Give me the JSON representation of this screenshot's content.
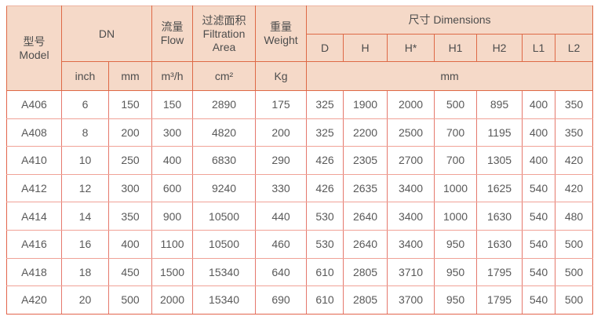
{
  "colors": {
    "header_bg": "#f5d9c8",
    "header_border": "#de6946",
    "outer_border": "#e2654c",
    "data_border_vertical": "#e5796d",
    "data_border_horizontal": "#f0a297",
    "header_text": "#4d4d4d",
    "data_text": "#595959",
    "page_bg": "#ffffff"
  },
  "table": {
    "header": {
      "model_zh": "型号",
      "model_en": "Model",
      "dn": "DN",
      "flow_zh": "流量",
      "flow_en": "Flow",
      "filtration_zh": "过滤面积",
      "filtration_en_1": "Filtration",
      "filtration_en_2": "Area",
      "weight_zh": "重量",
      "weight_en": "Weight",
      "dimensions": "尺寸 Dimensions",
      "dim_cols": [
        "D",
        "H",
        "H*",
        "H1",
        "H2",
        "L1",
        "L2"
      ],
      "unit_inch": "inch",
      "unit_mm": "mm",
      "unit_flow": "m³/h",
      "unit_area": "cm²",
      "unit_weight": "Kg",
      "unit_dim": "mm"
    },
    "rows": [
      [
        "A406",
        "6",
        "150",
        "150",
        "2890",
        "175",
        "325",
        "1900",
        "2000",
        "500",
        "895",
        "400",
        "350"
      ],
      [
        "A408",
        "8",
        "200",
        "300",
        "4820",
        "200",
        "325",
        "2200",
        "2500",
        "700",
        "1195",
        "400",
        "350"
      ],
      [
        "A410",
        "10",
        "250",
        "400",
        "6830",
        "290",
        "426",
        "2305",
        "2700",
        "700",
        "1305",
        "400",
        "420"
      ],
      [
        "A412",
        "12",
        "300",
        "600",
        "9240",
        "330",
        "426",
        "2635",
        "3400",
        "1000",
        "1625",
        "540",
        "420"
      ],
      [
        "A414",
        "14",
        "350",
        "900",
        "10500",
        "440",
        "530",
        "2640",
        "3400",
        "1000",
        "1630",
        "540",
        "480"
      ],
      [
        "A416",
        "16",
        "400",
        "1100",
        "10500",
        "460",
        "530",
        "2640",
        "3400",
        "950",
        "1630",
        "540",
        "500"
      ],
      [
        "A418",
        "18",
        "450",
        "1500",
        "15340",
        "640",
        "610",
        "2805",
        "3710",
        "950",
        "1795",
        "540",
        "500"
      ],
      [
        "A420",
        "20",
        "500",
        "2000",
        "15340",
        "690",
        "610",
        "2805",
        "3700",
        "950",
        "1795",
        "540",
        "500"
      ]
    ]
  }
}
